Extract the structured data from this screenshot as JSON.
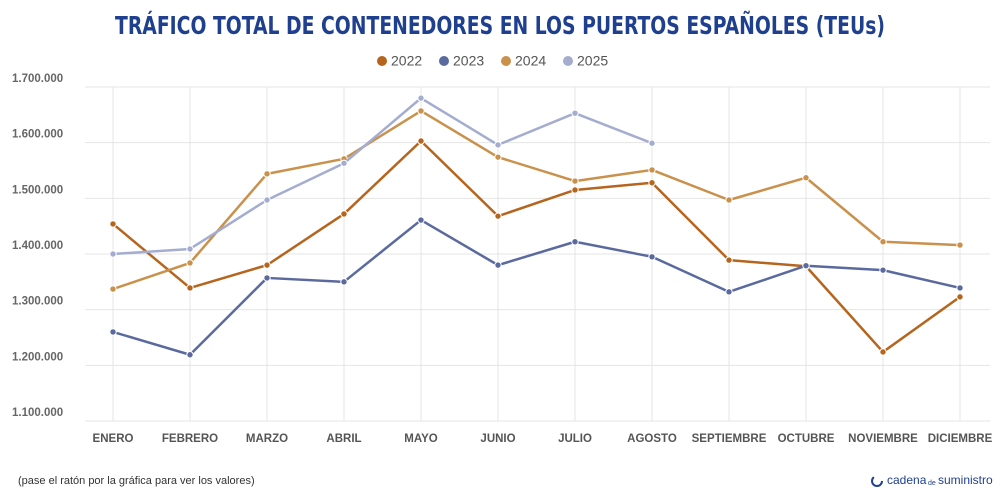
{
  "chart_data": {
    "type": "line",
    "title": "TRÁFICO TOTAL DE CONTENEDORES EN LOS PUERTOS ESPAÑOLES (TEUs)",
    "categories": [
      "ENERO",
      "FEBRERO",
      "MARZO",
      "ABRIL",
      "MAYO",
      "JUNIO",
      "JULIO",
      "AGOSTO",
      "SEPTIEMBRE",
      "OCTUBRE",
      "NOVIEMBRE",
      "DICIEMBRE"
    ],
    "series": [
      {
        "name": "2022",
        "color": "#b5651d",
        "values": [
          1454000,
          1339000,
          1380000,
          1472000,
          1603000,
          1468000,
          1515000,
          1528000,
          1389000,
          1378000,
          1224000,
          1323000
        ]
      },
      {
        "name": "2023",
        "color": "#5b6a9e",
        "values": [
          1260000,
          1219000,
          1357000,
          1350000,
          1461000,
          1380000,
          1422000,
          1395000,
          1332000,
          1379000,
          1371000,
          1339000
        ]
      },
      {
        "name": "2024",
        "color": "#c9914b",
        "values": [
          1337000,
          1384000,
          1544000,
          1571000,
          1657000,
          1574000,
          1531000,
          1551000,
          1497000,
          1537000,
          1422000,
          1416000
        ]
      },
      {
        "name": "2025",
        "color": "#a4add0",
        "values": [
          1400000,
          1409000,
          1497000,
          1563000,
          1680000,
          1596000,
          1653000,
          1599000,
          null,
          null,
          null,
          null
        ]
      }
    ],
    "ylim": [
      1100000,
      1700000
    ],
    "yticks": [
      {
        "value": 1100000,
        "label": "1.100.000"
      },
      {
        "value": 1200000,
        "label": "1.200.000"
      },
      {
        "value": 1300000,
        "label": "1.300.000"
      },
      {
        "value": 1400000,
        "label": "1.400.000"
      },
      {
        "value": 1500000,
        "label": "1.500.000"
      },
      {
        "value": 1600000,
        "label": "1.600.000"
      },
      {
        "value": 1700000,
        "label": "1.700.000"
      }
    ],
    "grid": true,
    "legend": "top",
    "note": "(pase el ratón por la gráfica para ver los valores)",
    "logo": [
      "cadena",
      "de",
      "suministro"
    ]
  }
}
